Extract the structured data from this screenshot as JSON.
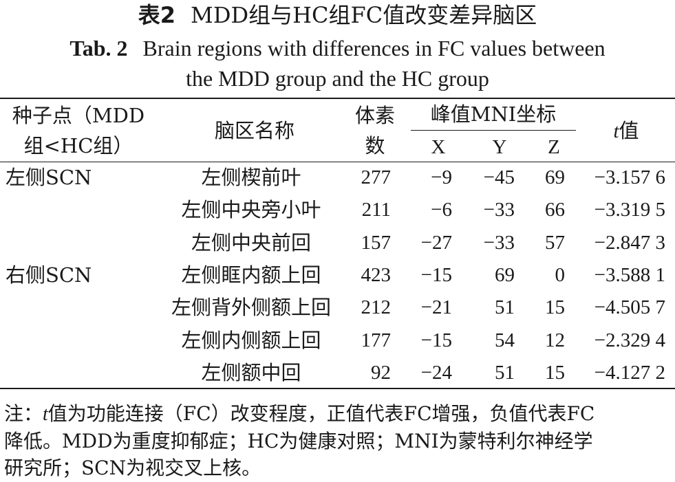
{
  "title_cn": {
    "label": "表2",
    "text": "MDD组与HC组FC值改变差异脑区"
  },
  "title_en": {
    "label": "Tab. 2",
    "line1": "Brain regions with differences in FC values between",
    "line2": "the MDD group and the HC group"
  },
  "header": {
    "seed_line1": "种子点（MDD",
    "seed_line2": "组<HC组）",
    "region": "脑区名称",
    "voxels_line1": "体素",
    "voxels_line2": "数",
    "peak": "峰值MNI坐标",
    "x": "X",
    "y": "Y",
    "z": "Z",
    "t_var": "t",
    "t_suffix": "值"
  },
  "rows": [
    {
      "seed": "左侧SCN",
      "region": "左侧楔前叶",
      "voxels": "277",
      "x": "−9",
      "y": "−45",
      "z": "69",
      "t": "−3.157 6"
    },
    {
      "seed": "",
      "region": "左侧中央旁小叶",
      "voxels": "211",
      "x": "−6",
      "y": "−33",
      "z": "66",
      "t": "−3.319 5"
    },
    {
      "seed": "",
      "region": "左侧中央前回",
      "voxels": "157",
      "x": "−27",
      "y": "−33",
      "z": "57",
      "t": "−2.847 3"
    },
    {
      "seed": "右侧SCN",
      "region": "左侧眶内额上回",
      "voxels": "423",
      "x": "−15",
      "y": "69",
      "z": "0",
      "t": "−3.588 1"
    },
    {
      "seed": "",
      "region": "左侧背外侧额上回",
      "voxels": "212",
      "x": "−21",
      "y": "51",
      "z": "15",
      "t": "−4.505 7"
    },
    {
      "seed": "",
      "region": "左侧内侧额上回",
      "voxels": "177",
      "x": "−15",
      "y": "54",
      "z": "12",
      "t": "−2.329 4"
    },
    {
      "seed": "",
      "region": "左侧额中回",
      "voxels": "92",
      "x": "−24",
      "y": "51",
      "z": "15",
      "t": "−4.127 2"
    }
  ],
  "note": {
    "prefix": "注：",
    "t_var": "t",
    "line1_rest": "值为功能连接（FC）改变程度，正值代表FC增强，负值代表FC",
    "line2": "降低。MDD为重度抑郁症；HC为健康对照；MNI为蒙特利尔神经学",
    "line3": "研究所；SCN为视交叉上核。"
  }
}
